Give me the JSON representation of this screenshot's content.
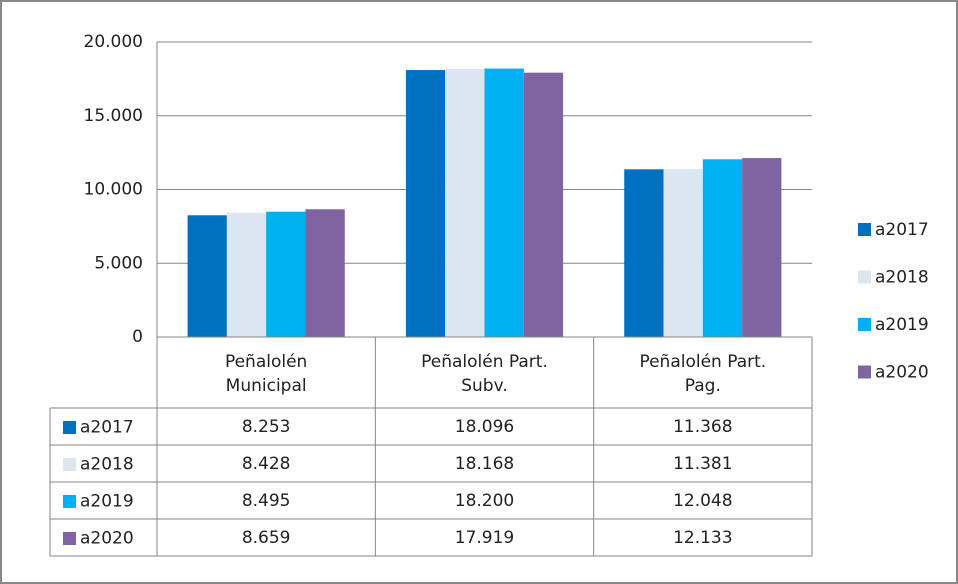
{
  "chart_data": {
    "type": "bar",
    "categories": [
      "Peñalolén Municipal",
      "Peñalolén Part. Subv.",
      "Peñalolén Part. Pag."
    ],
    "series": [
      {
        "name": "a2017",
        "color": "#0070c0",
        "values": [
          8253,
          18096,
          11368
        ],
        "value_labels": [
          "8.253",
          "18.096",
          "11.368"
        ]
      },
      {
        "name": "a2018",
        "color": "#dce6f2",
        "values": [
          8428,
          18168,
          11381
        ],
        "value_labels": [
          "8.428",
          "18.168",
          "11.381"
        ]
      },
      {
        "name": "a2019",
        "color": "#00b0f0",
        "values": [
          8495,
          18200,
          12048
        ],
        "value_labels": [
          "8.495",
          "18.200",
          "12.048"
        ]
      },
      {
        "name": "a2020",
        "color": "#8064a2",
        "values": [
          8659,
          17919,
          12133
        ],
        "value_labels": [
          "8.659",
          "17.919",
          "12.133"
        ]
      }
    ],
    "ylim": [
      0,
      20000
    ],
    "yticks": [
      0,
      {
        "value": 5000,
        "label": "5.000"
      },
      {
        "value": 10000,
        "label": "10.000"
      },
      {
        "value": 15000,
        "label": "15.000"
      },
      {
        "value": 20000,
        "label": "20.000"
      }
    ],
    "grid": true,
    "legend": "right"
  }
}
